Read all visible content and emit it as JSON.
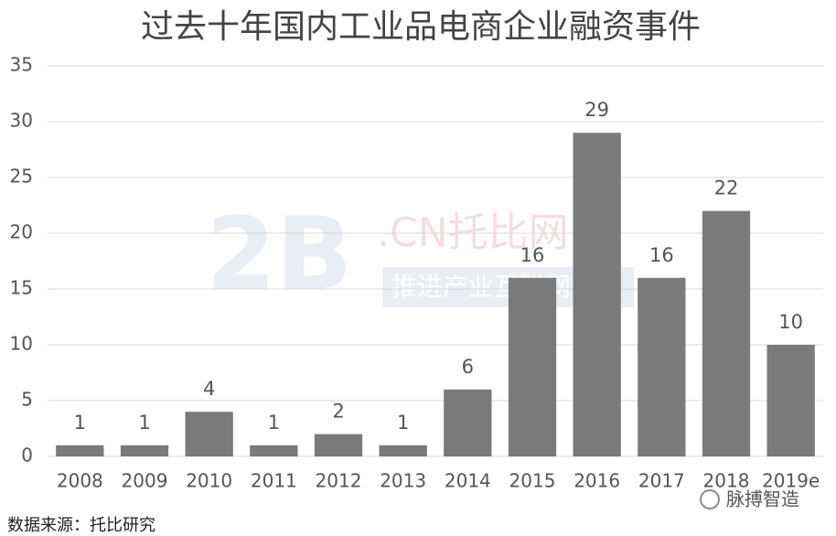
{
  "chart_data": {
    "type": "bar",
    "title": "过去十年国内工业品电商企业融资事件",
    "categories": [
      "2008",
      "2009",
      "2010",
      "2011",
      "2012",
      "2013",
      "2014",
      "2015",
      "2016",
      "2017",
      "2018",
      "2019e"
    ],
    "values": [
      1,
      1,
      4,
      1,
      2,
      1,
      6,
      16,
      29,
      16,
      22,
      10
    ],
    "color": "#7a7a7a",
    "ylim": [
      0,
      35
    ],
    "yticks": [
      0,
      5,
      10,
      15,
      20,
      25,
      30,
      35
    ],
    "grid": true,
    "data_labels": true,
    "watermark": [
      "2B",
      ".CN托比网",
      "推进产业互联网化"
    ],
    "source": "数据来源：托比研究",
    "brand": "脉搏智造"
  }
}
